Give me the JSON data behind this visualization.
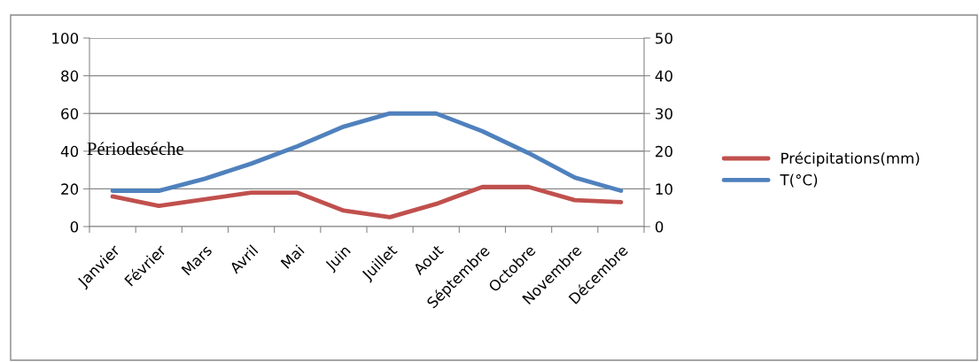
{
  "chart_data": {
    "type": "line",
    "categories": [
      "Janvier",
      "Février",
      "Mars",
      "Avril",
      "Mai",
      "Juin",
      "Juillet",
      "Aout",
      "Séptembre",
      "Octobre",
      "Novembre",
      "Décembre"
    ],
    "series": [
      {
        "name": "Précipitations(mm)",
        "color": "#c0504d",
        "values": [
          16,
          11,
          14.5,
          18,
          18,
          8.5,
          5,
          12,
          21,
          21,
          14,
          13
        ]
      },
      {
        "name": "T(°C)",
        "color": "#4f81bd",
        "axis": "y2",
        "values": [
          9.5,
          9.5,
          12.7,
          16.7,
          21.3,
          26.5,
          30,
          30,
          25.3,
          19.5,
          13,
          9.5
        ]
      }
    ],
    "ylim": [
      0,
      100
    ],
    "yticks": [
      0,
      20,
      40,
      60,
      80,
      100
    ],
    "y2lim": [
      0,
      50
    ],
    "y2ticks": [
      0,
      10,
      20,
      30,
      40,
      50
    ],
    "grid": "y",
    "legend": "right",
    "marker": "none",
    "line_style": "solid",
    "annotations": [
      "Périodeséche"
    ]
  }
}
